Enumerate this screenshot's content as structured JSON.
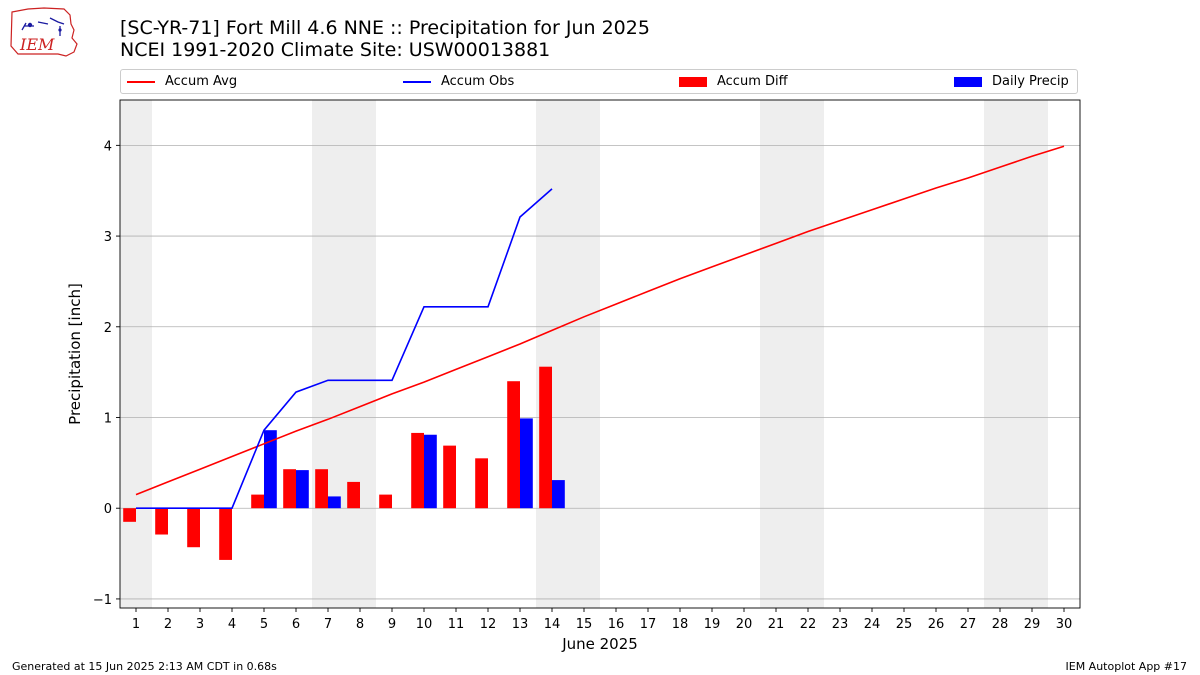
{
  "header": {
    "title_line1": "[SC-YR-71] Fort Mill 4.6 NNE :: Precipitation for Jun 2025",
    "title_line2": "NCEI 1991-2020 Climate Site: USW00013881"
  },
  "logo": {
    "text": "IEM"
  },
  "legend": [
    {
      "label": "Accum Avg",
      "kind": "line",
      "color": "#ff0000"
    },
    {
      "label": "Accum Obs",
      "kind": "line",
      "color": "#0000ff"
    },
    {
      "label": "Accum Diff",
      "kind": "bar",
      "color": "#ff0000"
    },
    {
      "label": "Daily Precip",
      "kind": "bar",
      "color": "#0000ff"
    }
  ],
  "footer": {
    "left": "Generated at 15 Jun 2025 2:13 AM CDT in 0.68s",
    "right": "IEM Autoplot App #17"
  },
  "chart_data": {
    "type": "bar",
    "xlabel": "June 2025",
    "ylabel": "Precipitation [inch]",
    "xlim": [
      0.5,
      30.5
    ],
    "ylim": [
      -1.1,
      4.5
    ],
    "x_ticks": [
      1,
      2,
      3,
      4,
      5,
      6,
      7,
      8,
      9,
      10,
      11,
      12,
      13,
      14,
      15,
      16,
      17,
      18,
      19,
      20,
      21,
      22,
      23,
      24,
      25,
      26,
      27,
      28,
      29,
      30
    ],
    "y_ticks": [
      -1,
      0,
      1,
      2,
      3,
      4
    ],
    "grid": "horizontal",
    "weekend_shading": [
      [
        0.5,
        1.5
      ],
      [
        6.5,
        8.5
      ],
      [
        13.5,
        15.5
      ],
      [
        20.5,
        22.5
      ],
      [
        27.5,
        29.5
      ]
    ],
    "series": [
      {
        "name": "Accum Avg",
        "kind": "line",
        "color": "#ff0000",
        "x": [
          1,
          2,
          3,
          4,
          5,
          6,
          7,
          8,
          9,
          10,
          11,
          12,
          13,
          14,
          15,
          16,
          17,
          18,
          19,
          20,
          21,
          22,
          23,
          24,
          25,
          26,
          27,
          28,
          29,
          30
        ],
        "values": [
          0.15,
          0.29,
          0.43,
          0.57,
          0.71,
          0.85,
          0.98,
          1.12,
          1.26,
          1.39,
          1.53,
          1.67,
          1.81,
          1.96,
          2.11,
          2.25,
          2.39,
          2.53,
          2.66,
          2.79,
          2.92,
          3.05,
          3.17,
          3.29,
          3.41,
          3.53,
          3.64,
          3.76,
          3.88,
          3.99
        ]
      },
      {
        "name": "Accum Obs",
        "kind": "line",
        "color": "#0000ff",
        "x": [
          1,
          2,
          3,
          4,
          5,
          6,
          7,
          8,
          9,
          10,
          11,
          12,
          13,
          14
        ],
        "values": [
          0,
          0,
          0,
          0,
          0.86,
          1.28,
          1.41,
          1.41,
          1.41,
          2.22,
          2.22,
          2.22,
          3.21,
          3.52
        ]
      },
      {
        "name": "Accum Diff",
        "kind": "bar",
        "color": "#ff0000",
        "x": [
          1,
          2,
          3,
          4,
          5,
          6,
          7,
          8,
          9,
          10,
          11,
          12,
          13,
          14
        ],
        "values": [
          -0.15,
          -0.29,
          -0.43,
          -0.57,
          0.15,
          0.43,
          0.43,
          0.29,
          0.15,
          0.83,
          0.69,
          0.55,
          1.4,
          1.56
        ]
      },
      {
        "name": "Daily Precip",
        "kind": "bar",
        "color": "#0000ff",
        "x": [
          1,
          2,
          3,
          4,
          5,
          6,
          7,
          8,
          9,
          10,
          11,
          12,
          13,
          14
        ],
        "values": [
          0,
          0,
          0,
          0,
          0.86,
          0.42,
          0.13,
          0,
          0,
          0.81,
          0,
          0,
          0.99,
          0.31
        ]
      }
    ]
  }
}
